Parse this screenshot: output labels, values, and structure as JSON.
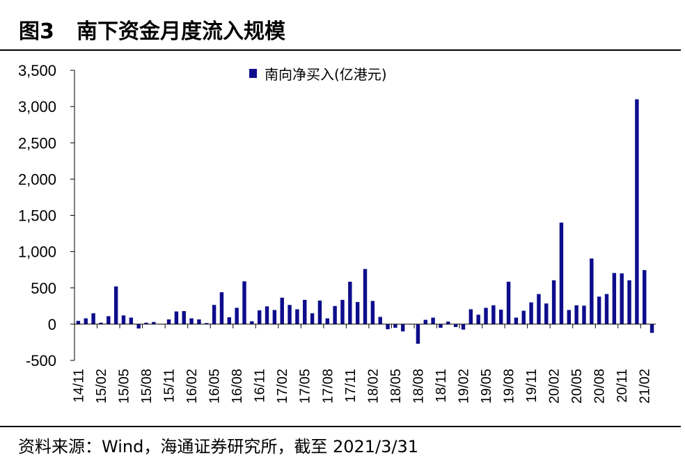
{
  "figure": {
    "number": "图3",
    "title": "南下资金月度流入规模",
    "source": "资料来源：Wind，海通证券研究所，截至 2021/3/31"
  },
  "colors": {
    "bar": "#0d0d8c",
    "axis": "#000000"
  },
  "chart_data": {
    "type": "bar",
    "title": "",
    "xlabel": "",
    "ylabel": "",
    "ylim": [
      -500,
      3500
    ],
    "yticks": [
      -500,
      0,
      500,
      1000,
      1500,
      2000,
      2500,
      3000,
      3500
    ],
    "ytick_labels": [
      "-500",
      "0",
      "500",
      "1,000",
      "1,500",
      "2,000",
      "2,500",
      "3,000",
      "3,500"
    ],
    "legend_position": "top-center",
    "grid": false,
    "categories": [
      "14/11",
      "14/12",
      "15/01",
      "15/02",
      "15/03",
      "15/04",
      "15/05",
      "15/06",
      "15/07",
      "15/08",
      "15/09",
      "15/10",
      "15/11",
      "15/12",
      "16/01",
      "16/02",
      "16/03",
      "16/04",
      "16/05",
      "16/06",
      "16/07",
      "16/08",
      "16/09",
      "16/10",
      "16/11",
      "16/12",
      "17/01",
      "17/02",
      "17/03",
      "17/04",
      "17/05",
      "17/06",
      "17/07",
      "17/08",
      "17/09",
      "17/10",
      "17/11",
      "17/12",
      "18/01",
      "18/02",
      "18/03",
      "18/04",
      "18/05",
      "18/06",
      "18/07",
      "18/08",
      "18/09",
      "18/10",
      "18/11",
      "18/12",
      "19/01",
      "19/02",
      "19/03",
      "19/04",
      "19/05",
      "19/06",
      "19/07",
      "19/08",
      "19/09",
      "19/10",
      "19/11",
      "19/12",
      "20/01",
      "20/02",
      "20/03",
      "20/04",
      "20/05",
      "20/06",
      "20/07",
      "20/08",
      "20/09",
      "20/10",
      "20/11",
      "20/12",
      "21/01",
      "21/02",
      "21/03"
    ],
    "xtick_labels": [
      "14/11",
      "15/02",
      "15/05",
      "15/08",
      "15/11",
      "16/02",
      "16/05",
      "16/08",
      "16/11",
      "17/02",
      "17/05",
      "17/08",
      "17/11",
      "18/02",
      "18/05",
      "18/08",
      "18/11",
      "19/02",
      "19/05",
      "19/08",
      "19/11",
      "20/02",
      "20/05",
      "20/08",
      "20/11",
      "21/02"
    ],
    "series": [
      {
        "name": "南向净买入(亿港元)",
        "values": [
          45,
          80,
          150,
          20,
          110,
          520,
          120,
          90,
          -60,
          20,
          30,
          0,
          65,
          175,
          180,
          80,
          65,
          15,
          265,
          440,
          95,
          225,
          590,
          40,
          190,
          245,
          195,
          365,
          265,
          205,
          335,
          150,
          325,
          80,
          250,
          335,
          585,
          305,
          760,
          320,
          100,
          -70,
          -50,
          -100,
          0,
          -270,
          60,
          90,
          -50,
          35,
          -40,
          -75,
          205,
          130,
          225,
          260,
          200,
          585,
          90,
          185,
          300,
          415,
          285,
          605,
          1400,
          195,
          260,
          255,
          905,
          380,
          415,
          705,
          700,
          605,
          3100,
          745,
          -120
        ]
      }
    ]
  }
}
